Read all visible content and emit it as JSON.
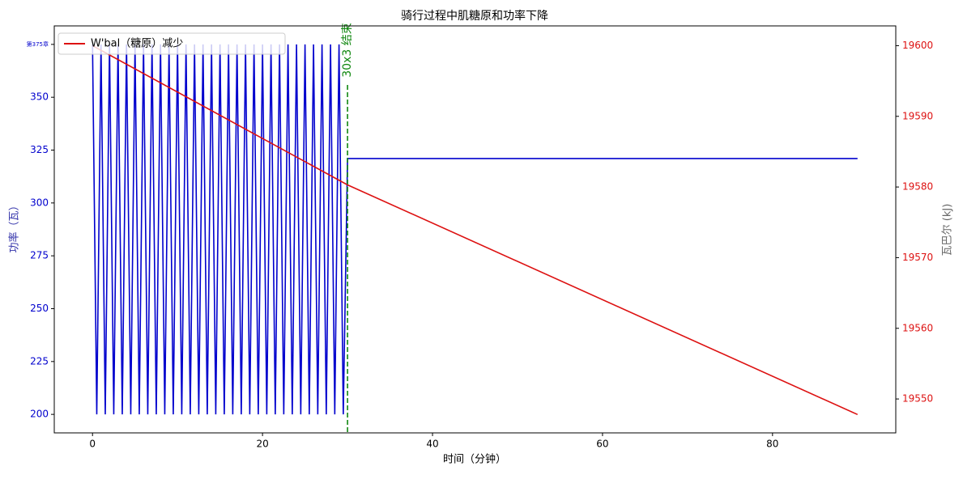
{
  "chart_data": {
    "type": "line",
    "title": "骑行过程中肌糖原和功率下降",
    "x_label": "时间（分钟）",
    "y_label": "功率（瓦）",
    "y2_label": "瓦巴尔 (kJ)",
    "annotation": "30x3 结束",
    "vline": 30,
    "vline_color": "#118811",
    "xlim": [
      -4.5,
      94.5
    ],
    "xticks": [
      0,
      20,
      40,
      60,
      80
    ],
    "ylim": [
      191.25,
      383.75
    ],
    "yticks": [
      200,
      225,
      250,
      275,
      300,
      325,
      350,
      {
        "value": 375,
        "label": "第375章"
      }
    ],
    "y2lim": [
      19545.2,
      19602.8
    ],
    "y2ticks": [
      19550,
      19560,
      19570,
      19580,
      19590,
      19600
    ],
    "legend": "upper left",
    "series": [
      {
        "color": "#0000cd",
        "x": [
          0,
          0.5,
          1,
          1.5,
          2,
          2.5,
          3,
          3.5,
          4,
          4.5,
          5,
          5.5,
          6,
          6.5,
          7,
          7.5,
          8,
          8.5,
          9,
          9.5,
          10,
          10.5,
          11,
          11.5,
          12,
          12.5,
          13,
          13.5,
          14,
          14.5,
          15,
          15.5,
          16,
          16.5,
          17,
          17.5,
          18,
          18.5,
          19,
          19.5,
          20,
          20.5,
          21,
          21.5,
          22,
          22.5,
          23,
          23.5,
          24,
          24.5,
          25,
          25.5,
          26,
          26.5,
          27,
          27.5,
          28,
          28.5,
          29,
          29.5,
          30,
          90
        ],
        "values": [
          375,
          200,
          375,
          200,
          375,
          200,
          375,
          200,
          375,
          200,
          375,
          200,
          375,
          200,
          375,
          200,
          375,
          200,
          375,
          200,
          375,
          200,
          375,
          200,
          375,
          200,
          375,
          200,
          375,
          200,
          375,
          200,
          375,
          200,
          375,
          200,
          375,
          200,
          375,
          200,
          375,
          200,
          375,
          200,
          375,
          200,
          375,
          200,
          375,
          200,
          375,
          200,
          375,
          200,
          375,
          200,
          375,
          200,
          375,
          200,
          321,
          321
        ]
      },
      {
        "name": "W'bal（糖原）减少",
        "color": "#dd1111",
        "axis": "y2",
        "x": [
          0,
          30,
          90
        ],
        "values": [
          19600,
          19580.3,
          19547.8
        ]
      }
    ]
  }
}
